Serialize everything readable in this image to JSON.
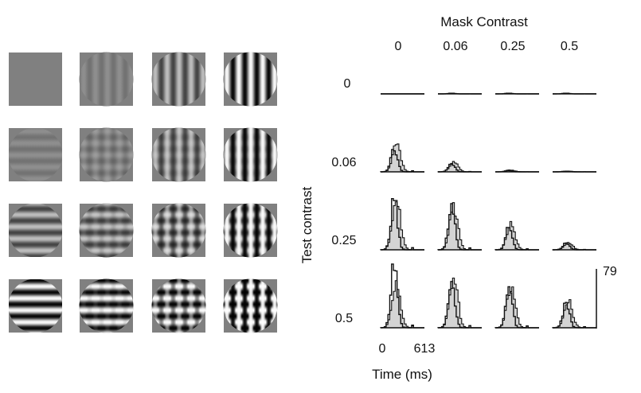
{
  "stimuli": {
    "mask_contrasts": [
      0,
      0.06,
      0.25,
      0.5
    ],
    "test_contrasts": [
      0,
      0.06,
      0.25,
      0.5
    ],
    "background_color": "#808080",
    "mask_orientation": "vertical",
    "test_orientation": "horizontal"
  },
  "psth": {
    "mask_title": "Mask Contrast",
    "mask_labels": [
      "0",
      "0.06",
      "0.25",
      "0.5"
    ],
    "test_title": "Test contrast",
    "test_labels": [
      "0",
      "0.06",
      "0.25",
      "0.5"
    ],
    "scale_bar_label": "79",
    "time_start_label": "0",
    "time_end_label": "613",
    "time_axis_label": "Time (ms)",
    "peak_scale": 79,
    "time_window_ms": [
      0,
      613
    ],
    "filled_hist_color": "#d4d4d4",
    "cells": [
      [
        {
          "filled_peak": 0,
          "open_peak": 0
        },
        {
          "filled_peak": 0,
          "open_peak": 1
        },
        {
          "filled_peak": 0,
          "open_peak": 1
        },
        {
          "filled_peak": 0,
          "open_peak": 1
        }
      ],
      [
        {
          "filled_peak": 34,
          "open_peak": 33
        },
        {
          "filled_peak": 13,
          "open_peak": 11
        },
        {
          "filled_peak": 2,
          "open_peak": 2
        },
        {
          "filled_peak": 1,
          "open_peak": 1
        }
      ],
      [
        {
          "filled_peak": 66,
          "open_peak": 70
        },
        {
          "filled_peak": 58,
          "open_peak": 63
        },
        {
          "filled_peak": 32,
          "open_peak": 30
        },
        {
          "filled_peak": 10,
          "open_peak": 10
        }
      ],
      [
        {
          "filled_peak": 64,
          "open_peak": 86
        },
        {
          "filled_peak": 68,
          "open_peak": 70
        },
        {
          "filled_peak": 58,
          "open_peak": 60
        },
        {
          "filled_peak": 35,
          "open_peak": 35
        }
      ]
    ]
  }
}
